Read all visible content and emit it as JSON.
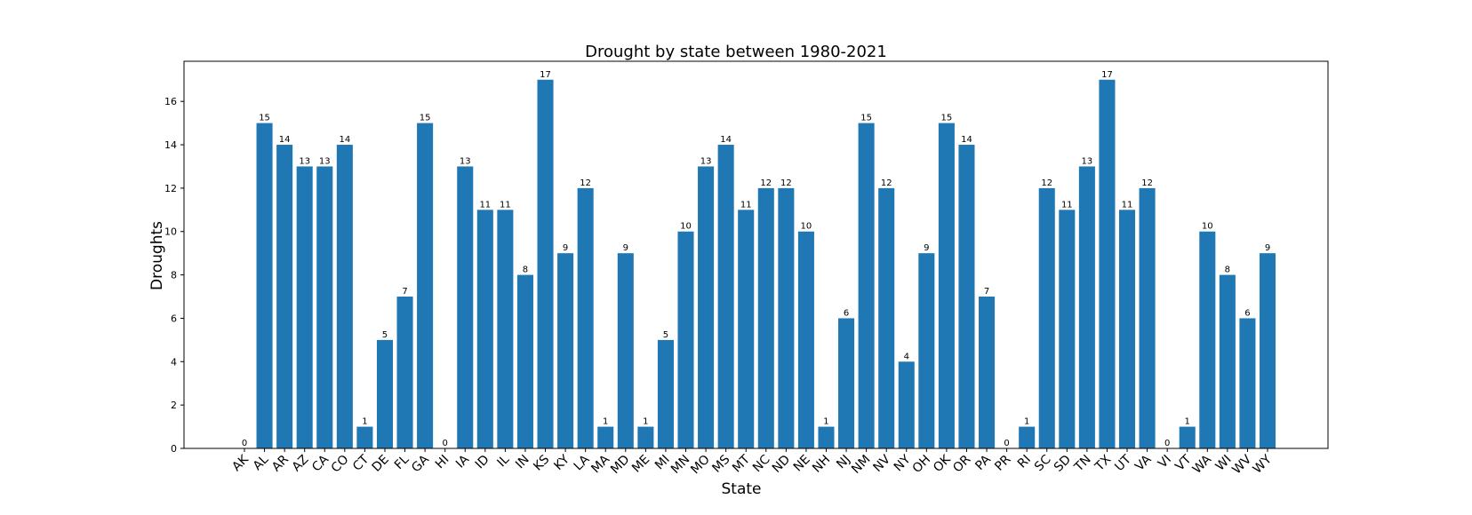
{
  "chart_data": {
    "type": "bar",
    "title": "Drought by state between 1980-2021",
    "xlabel": "State",
    "ylabel": "Droughts",
    "ylim": [
      0,
      17.85
    ],
    "yticks": [
      0,
      2,
      4,
      6,
      8,
      10,
      12,
      14,
      16
    ],
    "grid": false,
    "bar_color": "#1f77b4",
    "categories": [
      "AK",
      "AL",
      "AR",
      "AZ",
      "CA",
      "CO",
      "CT",
      "DE",
      "FL",
      "GA",
      "HI",
      "IA",
      "ID",
      "IL",
      "IN",
      "KS",
      "KY",
      "LA",
      "MA",
      "MD",
      "ME",
      "MI",
      "MN",
      "MO",
      "MS",
      "MT",
      "NC",
      "ND",
      "NE",
      "NH",
      "NJ",
      "NM",
      "NV",
      "NY",
      "OH",
      "OK",
      "OR",
      "PA",
      "PR",
      "RI",
      "SC",
      "SD",
      "TN",
      "TX",
      "UT",
      "VA",
      "VI",
      "VT",
      "WA",
      "WI",
      "WV",
      "WY"
    ],
    "values": [
      0,
      15,
      14,
      13,
      13,
      14,
      1,
      5,
      7,
      15,
      0,
      13,
      11,
      11,
      8,
      17,
      9,
      12,
      1,
      9,
      1,
      5,
      10,
      13,
      14,
      11,
      12,
      12,
      10,
      1,
      6,
      15,
      12,
      4,
      9,
      15,
      14,
      7,
      0,
      1,
      12,
      11,
      13,
      17,
      11,
      12,
      0,
      1,
      10,
      8,
      6,
      9
    ]
  }
}
